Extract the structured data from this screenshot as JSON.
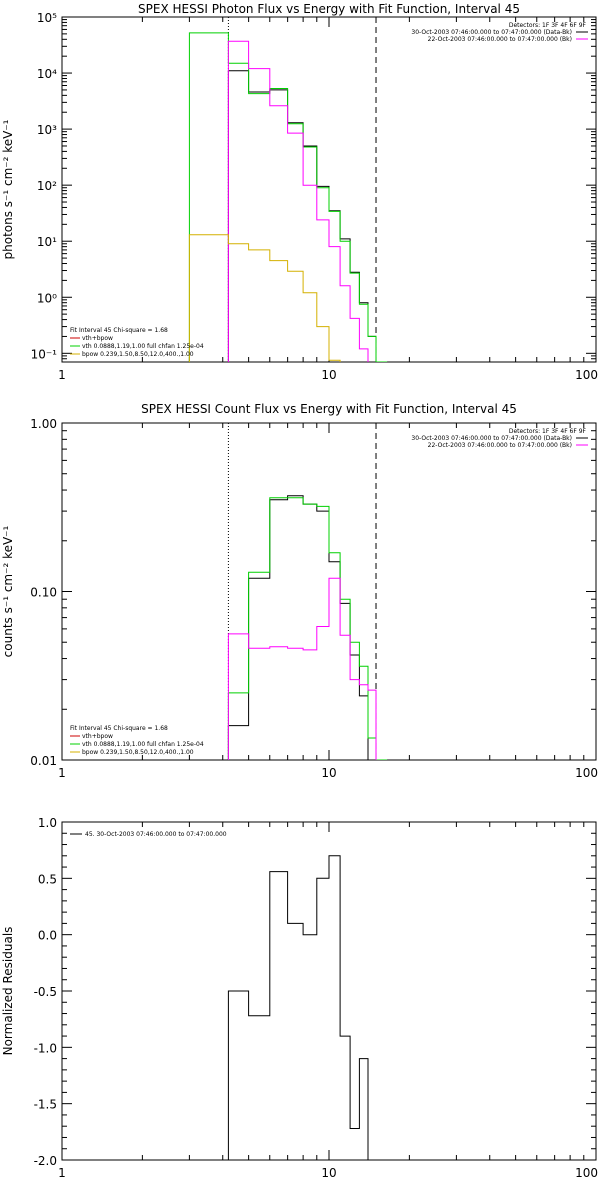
{
  "colors": {
    "total": "#000000",
    "vth": "#00d000",
    "bpow": "#d4b000",
    "lower_fill": "#ff00ff",
    "total_label_color": "#cc0000",
    "background": "#ffffff"
  },
  "chart_data": [
    {
      "type": "line",
      "drawstyle": "steps",
      "title": "SPEX HESSI Photon Flux vs Energy with Fit Function, Interval 45",
      "xlabel": "",
      "ylabel": "photons s⁻¹ cm⁻² keV⁻¹",
      "xscale": "log",
      "yscale": "log",
      "xlim": [
        1,
        100
      ],
      "ylim": [
        0.07,
        100000
      ],
      "xticks": [
        1,
        10,
        100
      ],
      "xtick_labels": [
        "1",
        "10",
        "100"
      ],
      "yticks": [
        0.1,
        1,
        10,
        100,
        1000,
        10000,
        100000
      ],
      "ytick_labels": [
        "10⁻¹",
        "10⁰",
        "10¹",
        "10²",
        "10³",
        "10⁴",
        "10⁵"
      ],
      "vlines": [
        {
          "x": 4.2,
          "style": "dotted"
        },
        {
          "x": 15,
          "style": "dashed"
        }
      ],
      "legend": {
        "header": "Fit Interval 45   Chi-square = 1.68",
        "items": [
          {
            "text": "vth+bpow",
            "color": "#cc0000"
          },
          {
            "text": "vth 0.0888,1.19,1.00  full chfan 1.25e-04",
            "color": "#00d000"
          },
          {
            "text": "bpow 0.239,1.50,8.50,12.0,400.,1.00",
            "color": "#d4b000"
          }
        ]
      },
      "info": {
        "detectors": "Detectors: 1F 3F 4F 6F 9F",
        "line1": "30-Oct-2003 07:46:00.000 to 07:47:00.000 (Data-Bk)",
        "line2": "22-Oct-2003 07:46:00.000 to 07:47:00.000 (Bk)"
      },
      "edges": [
        3,
        4.2,
        5,
        6,
        7,
        8,
        9,
        10,
        11,
        12,
        13,
        14,
        15,
        16.5
      ],
      "series": [
        {
          "name": "Data-Bk",
          "color": "#000000",
          "values": [
            null,
            11000,
            4600,
            5000,
            1300,
            500,
            95,
            35,
            11,
            2.8,
            0.8,
            0.2,
            null
          ]
        },
        {
          "name": "vth",
          "color": "#00d000",
          "values": [
            52000,
            15000,
            4300,
            5300,
            1250,
            480,
            90,
            34,
            10,
            2.7,
            0.75,
            0.2,
            0.06
          ]
        },
        {
          "name": "Bk",
          "color": "#ff00ff",
          "values": [
            null,
            37000,
            12000,
            2600,
            850,
            100,
            24,
            8,
            1.6,
            0.42,
            0.12,
            null,
            null
          ]
        },
        {
          "name": "bpow",
          "color": "#d4b000",
          "values": [
            13,
            9,
            7,
            4.5,
            2.9,
            1.2,
            0.3,
            0.075,
            null,
            null,
            null,
            null,
            null
          ]
        }
      ]
    },
    {
      "type": "line",
      "drawstyle": "steps",
      "title": "SPEX HESSI Count Flux vs Energy with Fit Function, Interval 45",
      "xlabel": "",
      "ylabel": "counts s⁻¹ cm⁻² keV⁻¹",
      "xscale": "log",
      "yscale": "log",
      "xlim": [
        1,
        100
      ],
      "ylim": [
        0.01,
        1.0
      ],
      "xticks": [
        1,
        10,
        100
      ],
      "xtick_labels": [
        "1",
        "10",
        "100"
      ],
      "yticks": [
        0.01,
        0.1,
        1.0
      ],
      "ytick_labels": [
        "0.01",
        "0.10",
        "1.00"
      ],
      "vlines": [
        {
          "x": 4.2,
          "style": "dotted"
        },
        {
          "x": 15,
          "style": "dashed"
        }
      ],
      "legend": {
        "header": "Fit Interval 45   Chi-square = 1.68",
        "items": [
          {
            "text": "vth+bpow",
            "color": "#cc0000"
          },
          {
            "text": "vth 0.0888,1.19,1.00  full chfan 1.25e-04",
            "color": "#00d000"
          },
          {
            "text": "bpow 0.239,1.50,8.50,12.0,400.,1.00",
            "color": "#d4b000"
          }
        ]
      },
      "info": {
        "detectors": "Detectors: 1F 3F 4F 6F 9F",
        "line1": "30-Oct-2003 07:46:00.000 to 07:47:00.000 (Data-Bk)",
        "line2": "22-Oct-2003 07:46:00.000 to 07:47:00.000 (Bk)"
      },
      "edges": [
        4.2,
        5,
        6,
        7,
        8,
        9,
        10,
        11,
        12,
        13,
        14,
        15,
        16.5
      ],
      "series": [
        {
          "name": "Data-Bk",
          "color": "#000000",
          "values": [
            0.016,
            0.12,
            0.35,
            0.37,
            0.33,
            0.3,
            0.15,
            0.085,
            0.042,
            0.024,
            null,
            null
          ]
        },
        {
          "name": "vth",
          "color": "#00d000",
          "values": [
            0.025,
            0.13,
            0.36,
            0.36,
            0.33,
            0.32,
            0.17,
            0.09,
            0.05,
            0.036,
            0.0135,
            0.006
          ]
        },
        {
          "name": "Bk",
          "color": "#ff00ff",
          "values": [
            0.056,
            0.046,
            0.047,
            0.046,
            0.045,
            0.062,
            0.12,
            0.055,
            0.03,
            0.028,
            0.026,
            null
          ]
        }
      ]
    },
    {
      "type": "line",
      "drawstyle": "steps",
      "title": "",
      "xlabel": "",
      "ylabel": "Normalized Residuals",
      "xscale": "log",
      "yscale": "linear",
      "xlim": [
        1,
        100
      ],
      "ylim": [
        -2.0,
        1.0
      ],
      "xticks": [
        1,
        10,
        100
      ],
      "xtick_labels": [
        "1",
        "10",
        "100"
      ],
      "yticks": [
        1.0,
        0.5,
        0.0,
        -0.5,
        -1.0,
        -1.5,
        -2.0
      ],
      "ytick_labels": [
        "1.0",
        "0.5",
        "0.0",
        "-0.5",
        "-1.0",
        "-1.5",
        "-2.0"
      ],
      "legend": {
        "items": [
          {
            "text": "45. 30-Oct-2003 07:46:00.000 to 07:47:00.000",
            "color": "#000000"
          }
        ]
      },
      "edges": [
        4.2,
        5,
        6,
        7,
        8,
        9,
        10,
        11,
        12,
        13,
        14,
        15
      ],
      "series": [
        {
          "name": "45. 30-Oct-2003 07:46:00.000 to 07:47:00.000",
          "color": "#000000",
          "values": [
            -0.5,
            -0.72,
            0.56,
            0.1,
            0.0,
            0.5,
            0.7,
            -0.9,
            -1.72,
            -1.1,
            -2.0
          ]
        }
      ]
    }
  ]
}
